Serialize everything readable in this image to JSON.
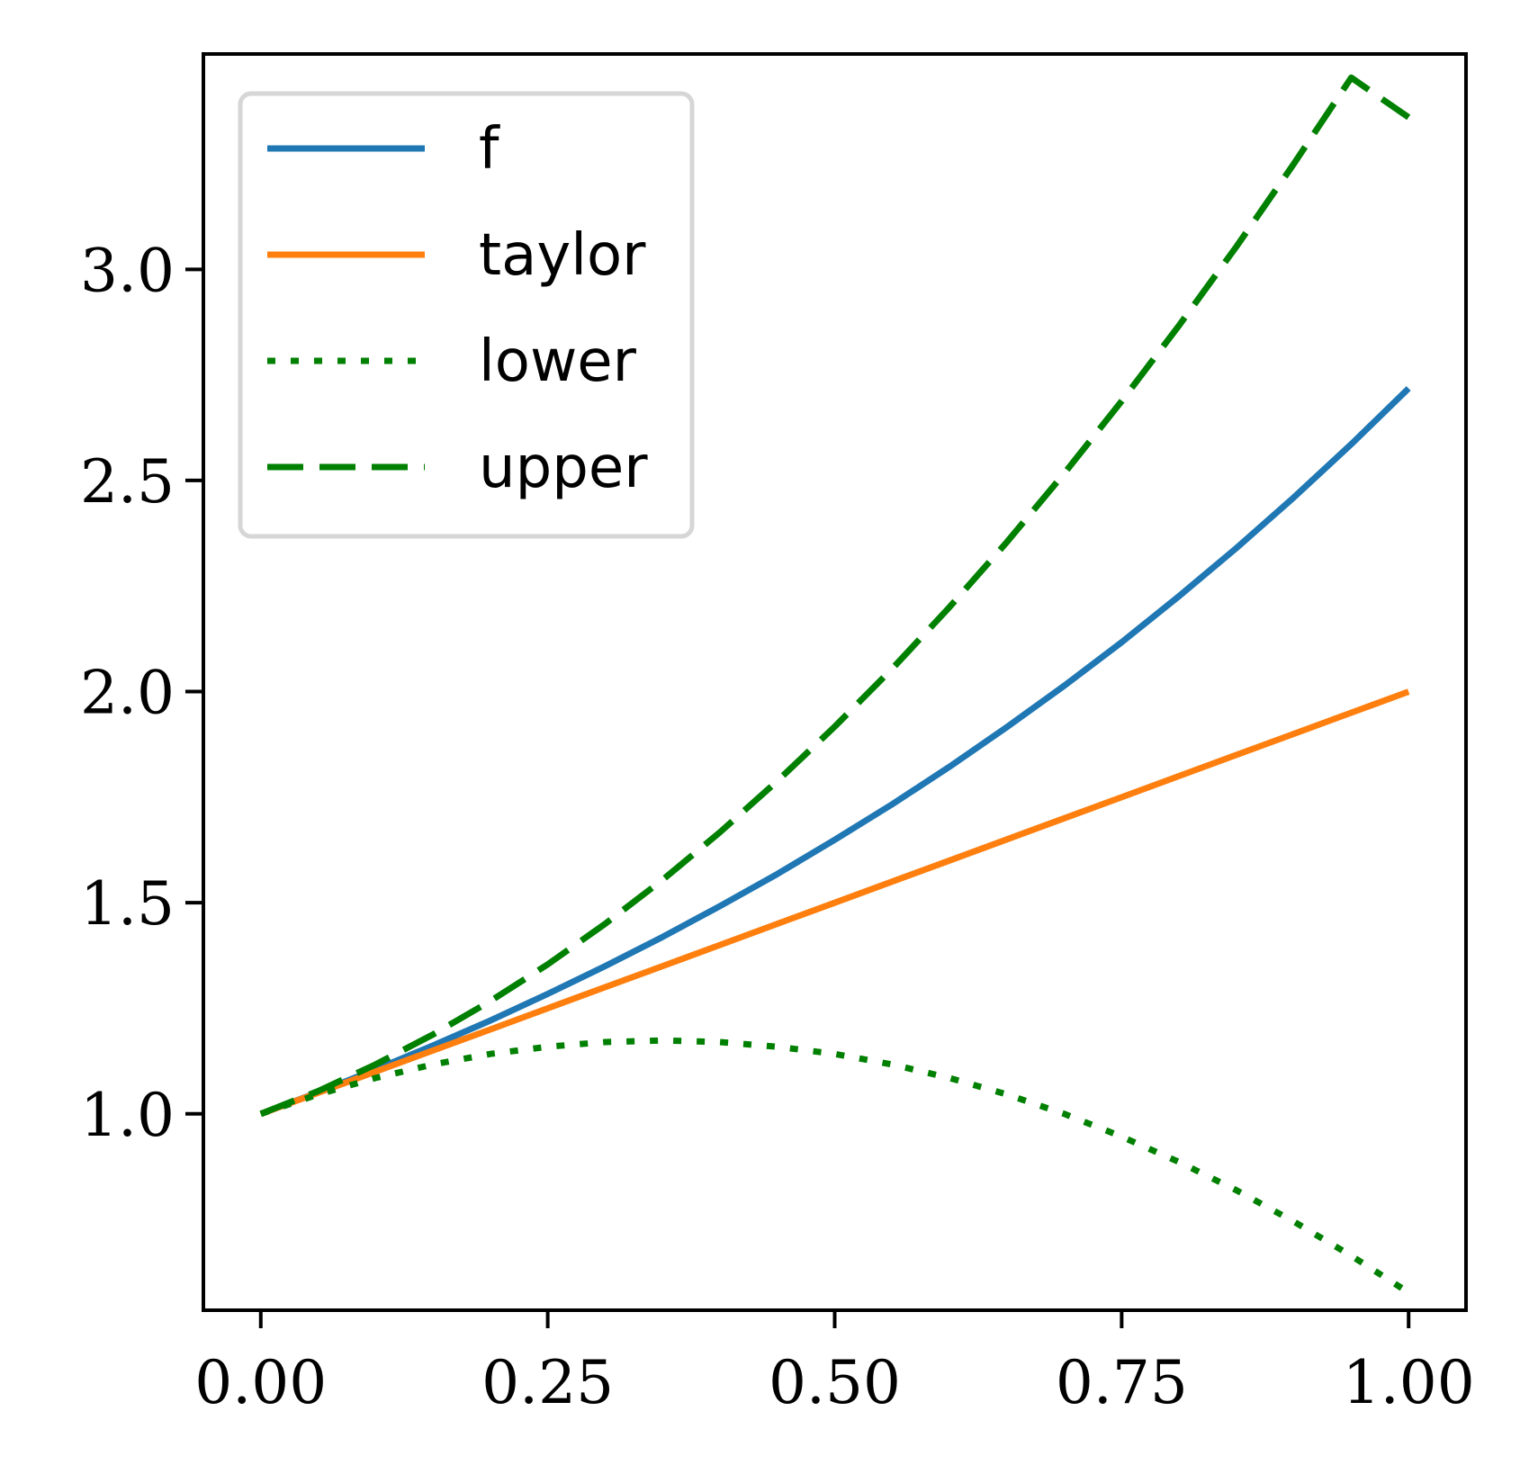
{
  "chart_data": {
    "type": "line",
    "title": "",
    "xlabel": "",
    "ylabel": "",
    "xlim": [
      -0.05,
      1.05
    ],
    "ylim": [
      0.535,
      3.51
    ],
    "x_ticks": [
      0.0,
      0.25,
      0.5,
      0.75,
      1.0
    ],
    "x_tick_labels": [
      "0.00",
      "0.25",
      "0.50",
      "0.75",
      "1.00"
    ],
    "y_ticks": [
      1.0,
      1.5,
      2.0,
      2.5,
      3.0
    ],
    "y_tick_labels": [
      "1.0",
      "1.5",
      "2.0",
      "2.5",
      "3.0"
    ],
    "grid": false,
    "legend_position": "top-left",
    "x": [
      0.0,
      0.05,
      0.1,
      0.15,
      0.2,
      0.25,
      0.3,
      0.35,
      0.4,
      0.45,
      0.5,
      0.55,
      0.6,
      0.65,
      0.7,
      0.75,
      0.8,
      0.85,
      0.9,
      0.95,
      1.0
    ],
    "series": [
      {
        "name": "f",
        "color": "#1f77b4",
        "style": "solid",
        "values": [
          1.0,
          1.051,
          1.105,
          1.162,
          1.221,
          1.284,
          1.35,
          1.419,
          1.492,
          1.568,
          1.649,
          1.733,
          1.822,
          1.916,
          2.014,
          2.117,
          2.226,
          2.34,
          2.46,
          2.586,
          2.718
        ]
      },
      {
        "name": "taylor",
        "color": "#ff7f0e",
        "style": "solid",
        "values": [
          1.0,
          1.05,
          1.1,
          1.15,
          1.2,
          1.25,
          1.3,
          1.35,
          1.4,
          1.45,
          1.5,
          1.55,
          1.6,
          1.65,
          1.7,
          1.75,
          1.8,
          1.85,
          1.9,
          1.95,
          2.0
        ]
      },
      {
        "name": "lower",
        "color": "#008000",
        "style": "dotted",
        "values": [
          1.0,
          1.046,
          1.085,
          1.117,
          1.142,
          1.159,
          1.17,
          1.174,
          1.17,
          1.159,
          1.142,
          1.117,
          1.085,
          1.046,
          1.0,
          0.946,
          0.886,
          0.819,
          0.745,
          0.664,
          0.577
        ]
      },
      {
        "name": "upper",
        "color": "#008000",
        "style": "dashed",
        "values": [
          1.0,
          1.054,
          1.117,
          1.188,
          1.267,
          1.354,
          1.45,
          1.554,
          1.667,
          1.788,
          1.917,
          2.054,
          2.2,
          2.354,
          2.517,
          2.688,
          2.867,
          3.054,
          3.25,
          3.454,
          3.36
        ]
      }
    ]
  }
}
